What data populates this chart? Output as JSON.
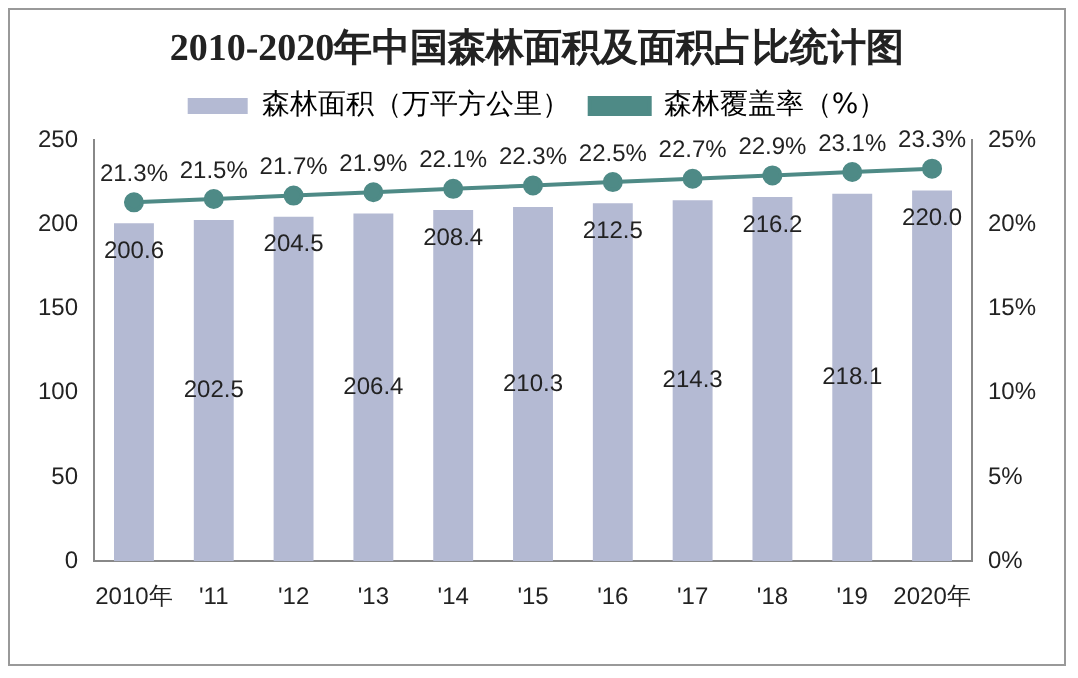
{
  "chart_data": {
    "type": "bar",
    "title": "2010-2020年中国森林面积及面积占比统计图",
    "categories": [
      "2010年",
      "'11",
      "'12",
      "'13",
      "'14",
      "'15",
      "'16",
      "'17",
      "'18",
      "'19",
      "2020年"
    ],
    "series": [
      {
        "name": "森林面积（万平方公里）",
        "color": "#b4bad3",
        "values": [
          200.6,
          202.5,
          204.5,
          206.4,
          208.4,
          210.3,
          212.5,
          214.3,
          216.2,
          218.1,
          220.0
        ],
        "value_labels": [
          "200.6",
          "202.5",
          "204.5",
          "206.4",
          "208.4",
          "210.3",
          "212.5",
          "214.3",
          "216.2",
          "218.1",
          "220.0"
        ]
      },
      {
        "name": "森林覆盖率（%）",
        "type": "line",
        "axis": "y2",
        "color": "#4e8a86",
        "marker": "circle",
        "values": [
          21.3,
          21.5,
          21.7,
          21.9,
          22.1,
          22.3,
          22.5,
          22.7,
          22.9,
          23.1,
          23.3
        ],
        "value_labels": [
          "21.3%",
          "21.5%",
          "21.7%",
          "21.9%",
          "22.1%",
          "22.3%",
          "22.5%",
          "22.7%",
          "22.9%",
          "23.1%",
          "23.3%"
        ]
      }
    ],
    "ylim": [
      0,
      250
    ],
    "yticks": [
      0,
      50,
      100,
      150,
      200,
      250
    ],
    "y2lim": [
      0,
      25
    ],
    "y2ticks": [
      {
        "value": 0,
        "label": "0%"
      },
      {
        "value": 5,
        "label": "5%"
      },
      {
        "value": 10,
        "label": "10%"
      },
      {
        "value": 15,
        "label": "15%"
      },
      {
        "value": 20,
        "label": "20%"
      },
      {
        "value": 25,
        "label": "25%"
      }
    ],
    "legend": "top",
    "grid": false
  }
}
